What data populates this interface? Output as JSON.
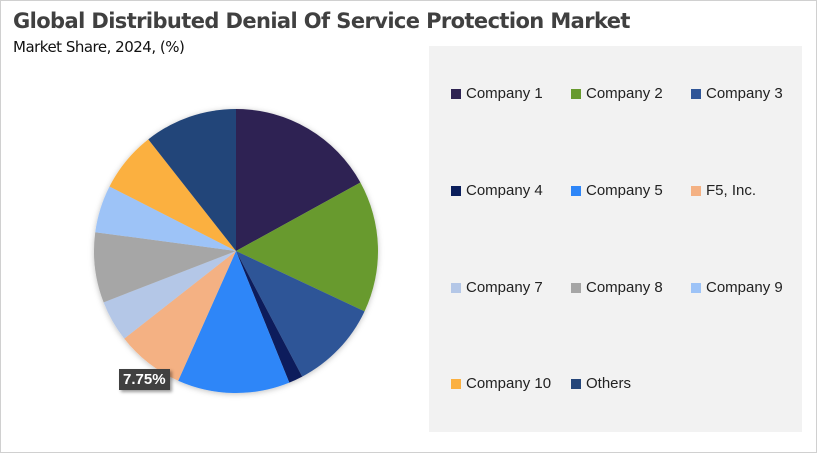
{
  "chart_data": {
    "type": "pie",
    "title": "Global Distributed Denial Of Service Protection Market",
    "subtitle": "Market Share, 2024, (%)",
    "legend_position": "right",
    "series": [
      {
        "name": "Company 1",
        "value": 17.0,
        "color": "#2e2352"
      },
      {
        "name": "Company 2",
        "value": 15.0,
        "color": "#679a2e"
      },
      {
        "name": "Company 3",
        "value": 10.3,
        "color": "#2f5597"
      },
      {
        "name": "Company 4",
        "value": 1.6,
        "color": "#0b1f5c"
      },
      {
        "name": "Company 5",
        "value": 12.8,
        "color": "#2e86f8"
      },
      {
        "name": "F5, Inc.",
        "value": 7.75,
        "color": "#f4b183"
      },
      {
        "name": "Company 7",
        "value": 4.7,
        "color": "#b4c7e7"
      },
      {
        "name": "Company 8",
        "value": 8.0,
        "color": "#a6a6a6"
      },
      {
        "name": "Company 9",
        "value": 5.4,
        "color": "#9dc3f7"
      },
      {
        "name": "Company 10",
        "value": 6.9,
        "color": "#fbb040"
      },
      {
        "name": "Others",
        "value": 10.6,
        "color": "#244579"
      }
    ],
    "data_labels": [
      {
        "series": "F5, Inc.",
        "text": "7.75%"
      }
    ]
  }
}
